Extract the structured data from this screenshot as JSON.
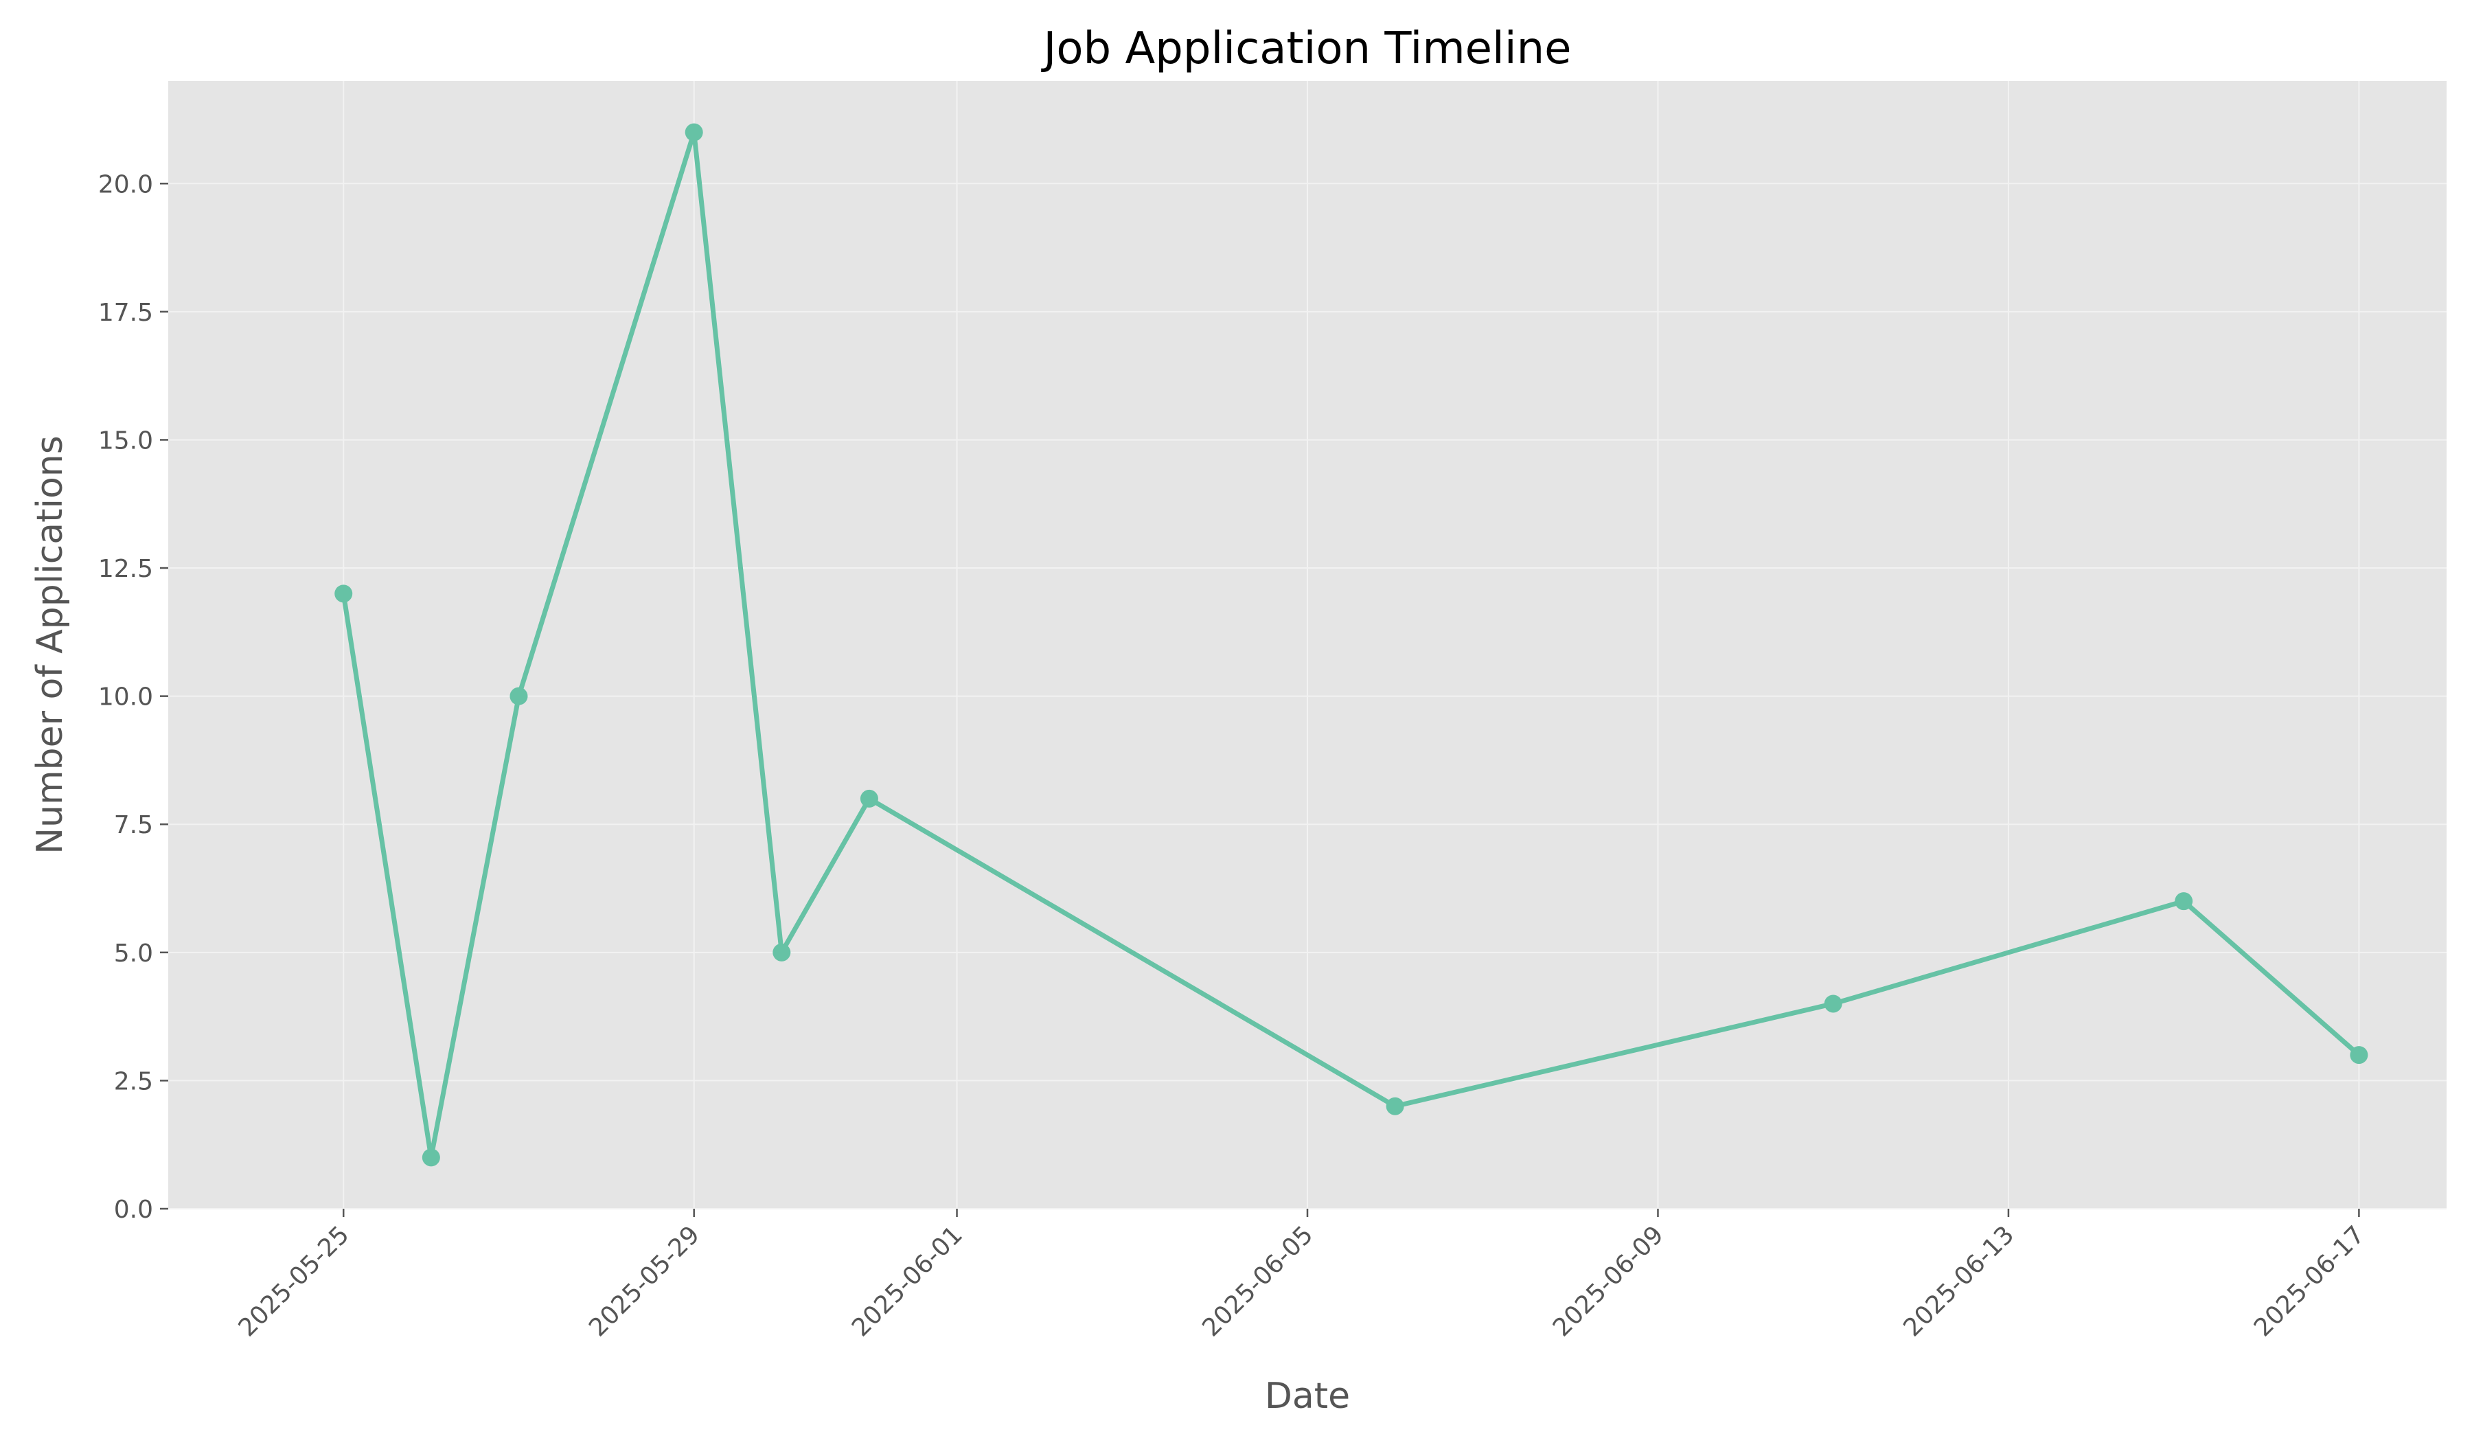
{
  "chart_data": {
    "type": "line",
    "title": "Job Application Timeline",
    "xlabel": "Date",
    "ylabel": "Number of Applications",
    "x_scale": "date",
    "xlim": [
      "2025-05-23",
      "2025-06-18"
    ],
    "ylim": [
      0,
      22
    ],
    "grid": true,
    "legend": "none",
    "x_ticks": [
      "2025-05-25",
      "2025-05-29",
      "2025-06-01",
      "2025-06-05",
      "2025-06-09",
      "2025-06-13",
      "2025-06-17"
    ],
    "y_ticks": [
      "0.0",
      "2.5",
      "5.0",
      "7.5",
      "10.0",
      "12.5",
      "15.0",
      "17.5",
      "20.0"
    ],
    "series": [
      {
        "x": [
          "2025-05-25",
          "2025-05-26",
          "2025-05-27",
          "2025-05-29",
          "2025-05-30",
          "2025-05-31",
          "2025-06-06",
          "2025-06-11",
          "2025-06-15",
          "2025-06-17"
        ],
        "y": [
          12,
          1,
          10,
          21,
          5,
          8,
          2,
          4,
          6,
          3
        ]
      }
    ],
    "colors": {
      "line": "#66c2a5",
      "plot_background": "#e5e5e5",
      "grid": "#f2f2f2"
    }
  }
}
